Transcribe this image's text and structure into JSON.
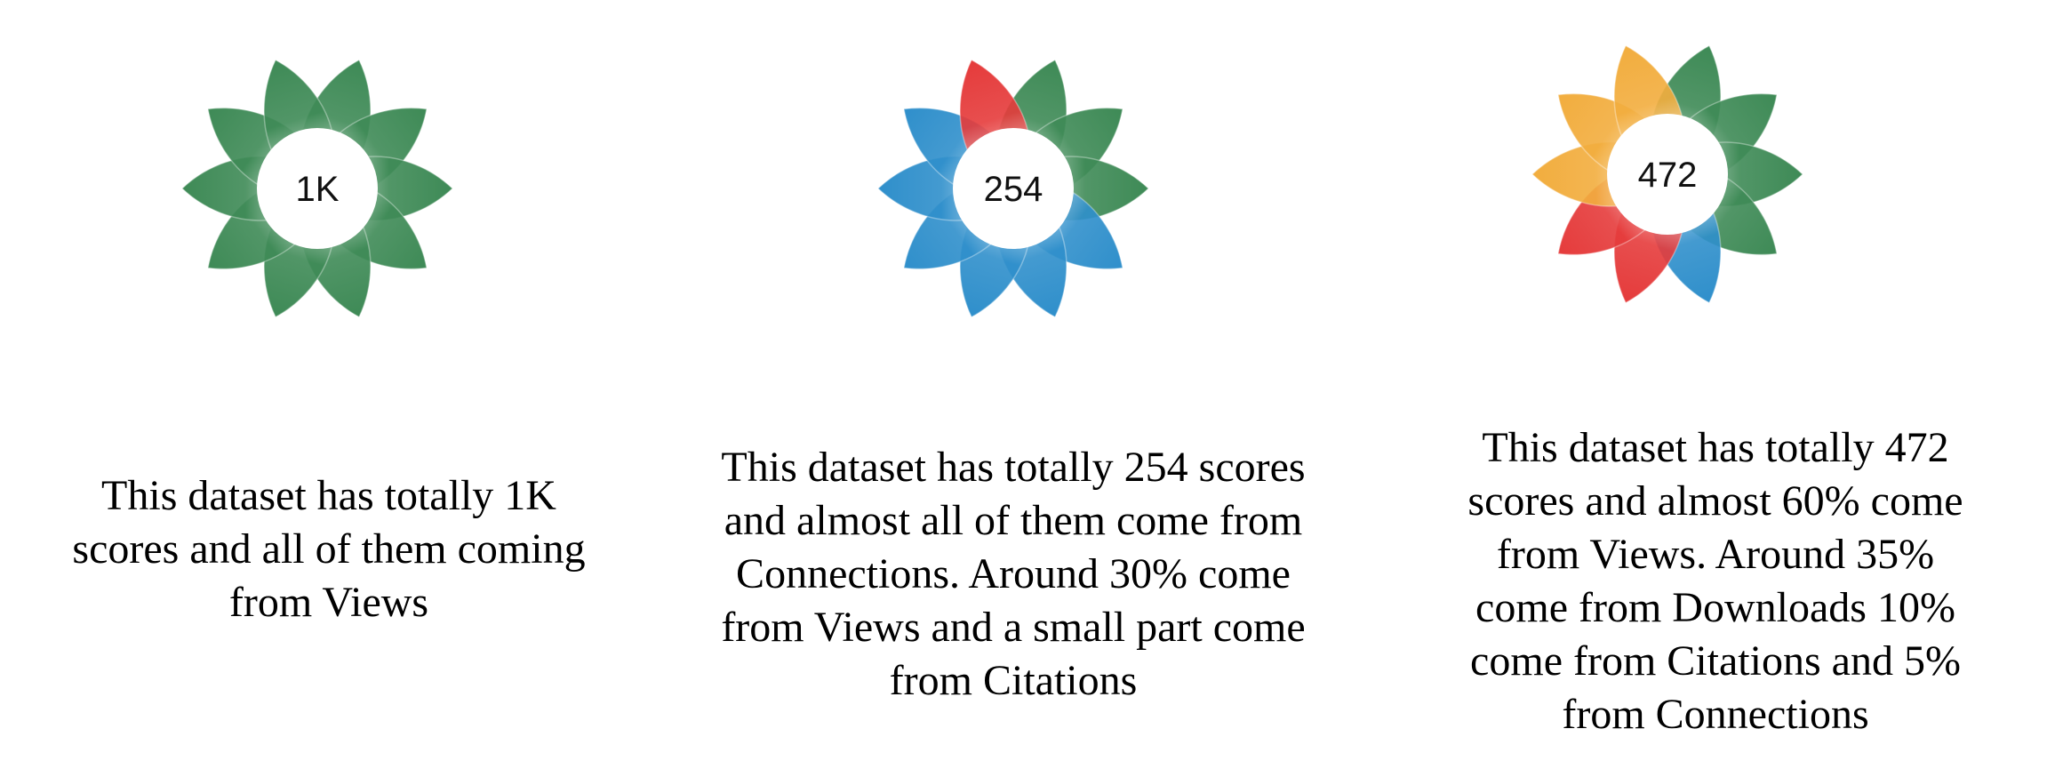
{
  "flowers": [
    {
      "score": "1K",
      "caption_lines": [
        "This dataset has totally 1K",
        "scores and all of them coming",
        "from Views"
      ],
      "petals": [
        "views",
        "views",
        "views",
        "views",
        "views",
        "views",
        "views",
        "views",
        "views",
        "views"
      ]
    },
    {
      "score": "254",
      "caption_lines": [
        "This dataset has totally 254 scores",
        "and almost all of them come from",
        "Connections. Around 30% come",
        "from Views and a small part come",
        "from Citations"
      ],
      "petals": [
        "views",
        "views",
        "views",
        "connections",
        "connections",
        "connections",
        "connections",
        "connections",
        "connections",
        "citations"
      ]
    },
    {
      "score": "472",
      "caption_lines": [
        "This dataset has totally 472",
        "scores and almost 60% come",
        "from Views. Around 35%",
        "come from Downloads 10%",
        "come from Citations and 5%",
        "from Connections"
      ],
      "petals": [
        "views",
        "views",
        "views",
        "views",
        "connections",
        "citations",
        "citations",
        "downloads",
        "downloads",
        "downloads"
      ]
    }
  ],
  "category_colors": {
    "views": "#3e8a56",
    "connections": "#2f8fcb",
    "citations": "#e53b3b",
    "downloads": "#f2ad3e"
  }
}
